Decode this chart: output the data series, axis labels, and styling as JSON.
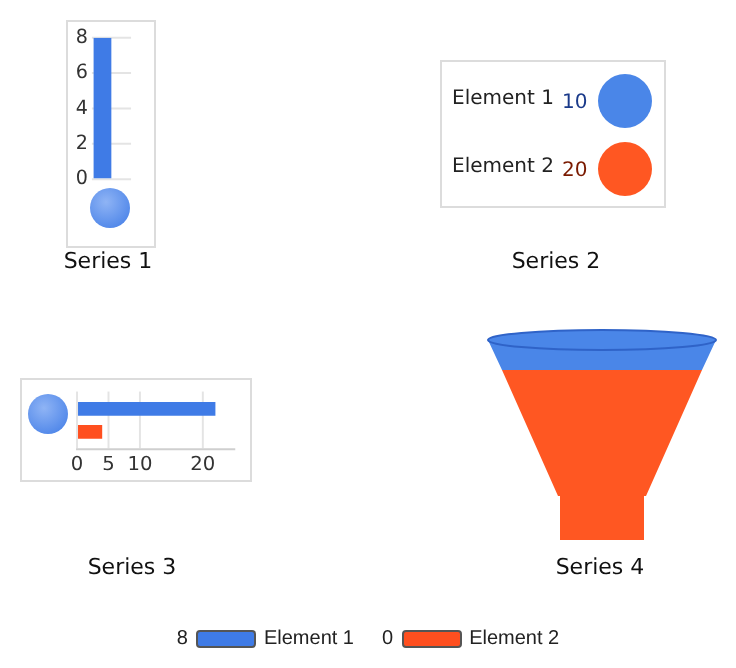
{
  "chart_data": [
    {
      "type": "bar",
      "title": "Series 1",
      "categories": [
        null
      ],
      "ylim": [
        0,
        8
      ],
      "yticks": [
        0,
        2,
        4,
        6,
        8
      ],
      "grid": "y",
      "legend": "bottom",
      "annotations": [
        "8",
        "0"
      ],
      "series": [
        {
          "name": "Element 1",
          "color": "#3f7be6",
          "values": [
            8
          ]
        },
        {
          "name": "Element 2",
          "color": "#ff4f1f",
          "values": [
            0
          ]
        }
      ]
    },
    {
      "type": "other",
      "title": "Series 2",
      "categories": [
        "Element 1",
        "Element 2"
      ],
      "values": [
        10,
        20
      ],
      "data_labels": true,
      "colors": [
        "#4a86e8",
        "#ff5722"
      ]
    },
    {
      "type": "bar",
      "title": "Series 3",
      "orientation": "horizontal",
      "categories": [
        null
      ],
      "xlim": [
        0,
        25
      ],
      "xticks": [
        0,
        5,
        10,
        20
      ],
      "grid": "x",
      "series": [
        {
          "color": "#3f7be6",
          "values": [
            22
          ]
        },
        {
          "color": "#ff4f1f",
          "values": [
            4
          ]
        }
      ]
    },
    {
      "type": "other",
      "title": "Series 4",
      "categories": [
        null,
        null
      ],
      "colors": [
        "#4a86e8",
        "#ff5722"
      ]
    }
  ]
}
